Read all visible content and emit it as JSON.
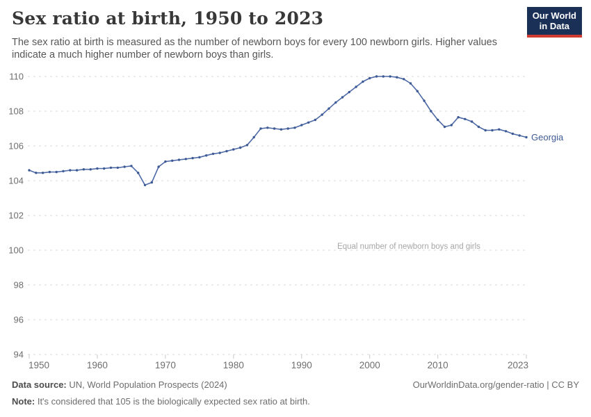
{
  "header": {
    "title": "Sex ratio at birth, 1950 to 2023",
    "subtitle": "The sex ratio at birth is measured as the number of newborn boys for every 100 newborn girls. Higher values indicate a much higher number of newborn boys than girls.",
    "logo": {
      "line1": "Our World",
      "line2": "in Data"
    }
  },
  "chart_data": {
    "type": "line",
    "title": "Sex ratio at birth, 1950 to 2023",
    "xlabel": "",
    "ylabel": "",
    "ylim": [
      94,
      110
    ],
    "yticks": [
      94,
      96,
      98,
      100,
      102,
      104,
      106,
      108,
      110
    ],
    "xticks": [
      1950,
      1960,
      1970,
      1980,
      1990,
      2000,
      2010,
      2023
    ],
    "grid": "horizontal-dashed",
    "legend_position": "end-of-line-label",
    "annotation": {
      "text": "Equal number of newborn boys and girls",
      "y": 100
    },
    "series": [
      {
        "name": "Georgia",
        "color": "#4d69a6",
        "x": [
          1950,
          1951,
          1952,
          1953,
          1954,
          1955,
          1956,
          1957,
          1958,
          1959,
          1960,
          1961,
          1962,
          1963,
          1964,
          1965,
          1966,
          1967,
          1968,
          1969,
          1970,
          1971,
          1972,
          1973,
          1974,
          1975,
          1976,
          1977,
          1978,
          1979,
          1980,
          1981,
          1982,
          1983,
          1984,
          1985,
          1986,
          1987,
          1988,
          1989,
          1990,
          1991,
          1992,
          1993,
          1994,
          1995,
          1996,
          1997,
          1998,
          1999,
          2000,
          2001,
          2002,
          2003,
          2004,
          2005,
          2006,
          2007,
          2008,
          2009,
          2010,
          2011,
          2012,
          2013,
          2014,
          2015,
          2016,
          2017,
          2018,
          2019,
          2020,
          2021,
          2022,
          2023
        ],
        "values": [
          104.6,
          104.45,
          104.45,
          104.5,
          104.5,
          104.55,
          104.6,
          104.6,
          104.65,
          104.65,
          104.7,
          104.7,
          104.75,
          104.75,
          104.8,
          104.85,
          104.45,
          103.75,
          103.9,
          104.8,
          105.1,
          105.15,
          105.2,
          105.25,
          105.3,
          105.35,
          105.45,
          105.55,
          105.6,
          105.7,
          105.8,
          105.9,
          106.05,
          106.5,
          107.0,
          107.05,
          107.0,
          106.95,
          107.0,
          107.05,
          107.2,
          107.35,
          107.5,
          107.8,
          108.15,
          108.5,
          108.8,
          109.1,
          109.4,
          109.7,
          109.9,
          110.0,
          110.0,
          110.0,
          109.95,
          109.85,
          109.6,
          109.15,
          108.6,
          108.0,
          107.5,
          107.1,
          107.2,
          107.65,
          107.55,
          107.4,
          107.1,
          106.9,
          106.9,
          106.95,
          106.85,
          106.7,
          106.6,
          106.5
        ]
      }
    ]
  },
  "footer": {
    "source_label": "Data source:",
    "source_text": " UN, World Population Prospects (2024)",
    "note_label": "Note:",
    "note_text": " It's considered that 105 is the biologically expected sex ratio at birth.",
    "link": "OurWorldinData.org/gender-ratio | CC BY"
  },
  "colors": {
    "line": "#4d69a6",
    "point": "#3d5a94",
    "end_label": "#3d5a94",
    "grid": "#dadada",
    "tick": "#c8c8c8",
    "axis_text": "#6e6e6e",
    "annotation_text": "#a6a6a6",
    "logo_bg": "#1a3057",
    "logo_red": "#cf3a31"
  }
}
